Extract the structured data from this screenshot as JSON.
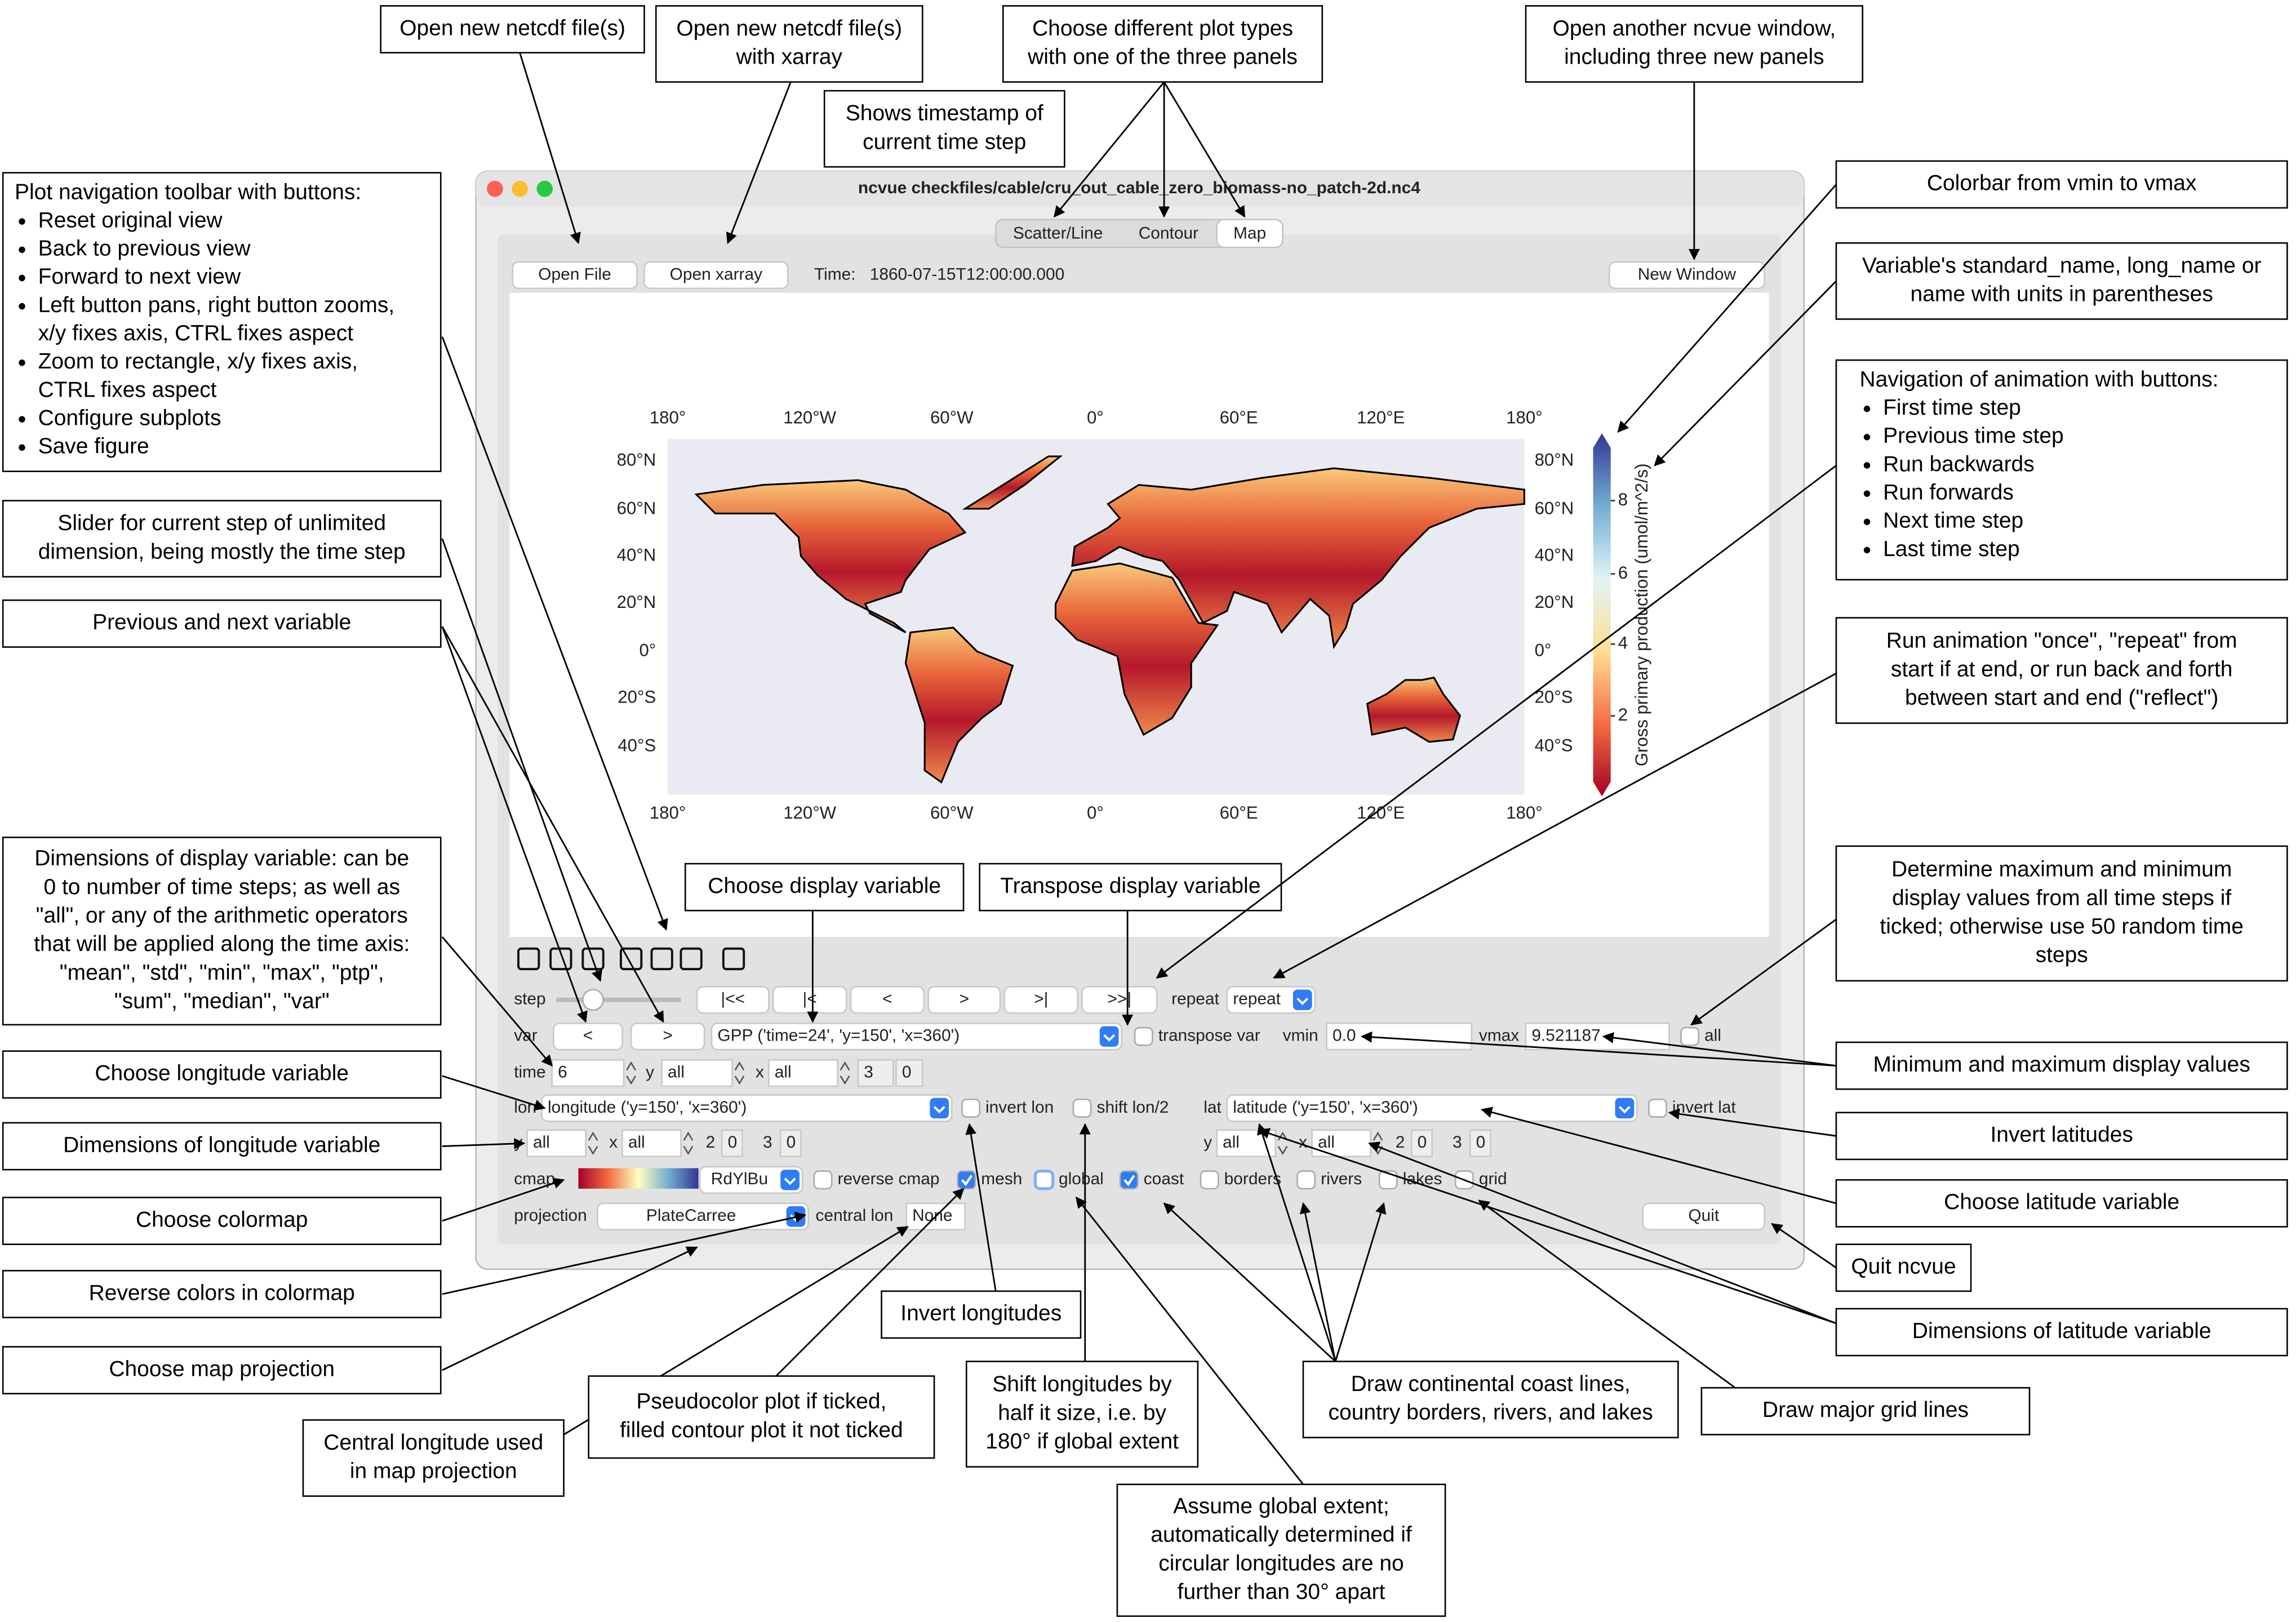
{
  "window": {
    "title": "ncvue checkfiles/cable/cru_out_cable_zero_biomass-no_patch-2d.nc4"
  },
  "tabs": [
    "Scatter/Line",
    "Contour",
    "Map"
  ],
  "top_bar": {
    "open_file": "Open File",
    "open_xarray": "Open xarray",
    "time_label": "Time:",
    "time_value": "1860-07-15T12:00:00.000",
    "new_window": "New Window"
  },
  "map": {
    "lon_labels": [
      "180°",
      "120°W",
      "60°W",
      "0°",
      "60°E",
      "120°E",
      "180°"
    ],
    "lat_labels": [
      "80°N",
      "60°N",
      "40°N",
      "20°N",
      "0°",
      "20°S",
      "40°S"
    ],
    "colorbar_ticks": [
      "2",
      "4",
      "6",
      "8"
    ],
    "colorbar_label": "Gross primary production (umol/m^2/s)"
  },
  "controls": {
    "step": {
      "label": "step",
      "buttons": [
        "|<<",
        "|<",
        "<",
        ">",
        ">|",
        ">>|"
      ],
      "repeat_label": "repeat",
      "repeat_value": "repeat"
    },
    "var": {
      "label": "var",
      "prev": "<",
      "next": ">",
      "value": "GPP ('time=24', 'y=150', 'x=360')",
      "transpose": "transpose var",
      "vmin_label": "vmin",
      "vmin": "0.0",
      "vmax_label": "vmax",
      "vmax": "9.521187",
      "all": "all"
    },
    "time": {
      "label": "time",
      "value": "6",
      "y_label": "y",
      "y_value": "all",
      "x_label": "x",
      "x_value": "all",
      "d3": "3",
      "d4": "0"
    },
    "lon": {
      "label": "lon",
      "value": "longitude ('y=150', 'x=360')",
      "invert": "invert lon",
      "shift": "shift lon/2"
    },
    "lat": {
      "label": "lat",
      "value": "latitude ('y=150', 'x=360')",
      "invert": "invert lat"
    },
    "lon_dims": {
      "y_label": "y",
      "y_value": "all",
      "x_label": "x",
      "x_value": "all",
      "d3": "2",
      "d4": "0",
      "d5": "3",
      "d6": "0"
    },
    "lat_dims": {
      "y_label": "y",
      "y_value": "all",
      "x_label": "x",
      "x_value": "all",
      "d3": "2",
      "d4": "0",
      "d5": "3",
      "d6": "0"
    },
    "cmap": {
      "label": "cmap",
      "value": "RdYlBu",
      "reverse": "reverse cmap",
      "mesh": "mesh",
      "global": "global",
      "coast": "coast",
      "borders": "borders",
      "rivers": "rivers",
      "lakes": "lakes",
      "grid": "grid"
    },
    "projection": {
      "label": "projection",
      "value": "PlateCarree",
      "central_lon_label": "central lon",
      "central_lon": "None",
      "quit": "Quit"
    }
  },
  "annotations": [
    {
      "lines": [
        "Open new netcdf file(s)"
      ]
    },
    {
      "lines": [
        "Open new netcdf file(s)",
        "with xarray"
      ]
    },
    {
      "lines": [
        "Choose different plot types",
        "with one of the three panels"
      ]
    },
    {
      "lines": [
        "Shows timestamp of",
        "current time step"
      ]
    },
    {
      "lines": [
        "Open another ncvue window,",
        "including three new panels"
      ]
    },
    {
      "title": "Plot navigation toolbar with buttons:",
      "items": [
        "Reset original view",
        "Back to previous view",
        "Forward to next view",
        "Left button pans, right button zooms,",
        "x/y fixes axis, CTRL fixes aspect",
        "Zoom to rectangle, x/y fixes axis,",
        "CTRL fixes aspect",
        "Configure subplots",
        "Save figure"
      ]
    },
    {
      "lines": [
        "Slider for current step of unlimited",
        "dimension, being mostly the time step"
      ]
    },
    {
      "lines": [
        "Previous and next variable"
      ]
    },
    {
      "lines": [
        "Dimensions of display variable: can be",
        "0 to number of time steps; as well as",
        "\"all\", or any of the arithmetic operators",
        "that will be applied along the time axis:",
        "\"mean\", \"std\", \"min\", \"max\", \"ptp\",",
        "\"sum\", \"median\", \"var\""
      ]
    },
    {
      "lines": [
        "Choose longitude variable"
      ]
    },
    {
      "lines": [
        "Dimensions of longitude variable"
      ]
    },
    {
      "lines": [
        "Choose colormap"
      ]
    },
    {
      "lines": [
        "Reverse colors in colormap"
      ]
    },
    {
      "lines": [
        "Choose map projection"
      ]
    },
    {
      "lines": [
        "Central longitude used",
        "in map projection"
      ]
    },
    {
      "lines": [
        "Pseudocolor plot if ticked,",
        "filled contour plot it not ticked"
      ]
    },
    {
      "lines": [
        "Invert longitudes"
      ]
    },
    {
      "lines": [
        "Shift longitudes by",
        "half it size, i.e. by",
        "180° if global extent"
      ]
    },
    {
      "lines": [
        "Assume global extent;",
        "automatically determined if",
        "circular longitudes are no",
        "further than 30° apart"
      ]
    },
    {
      "lines": [
        "Draw continental coast lines,",
        "country borders, rivers, and lakes"
      ]
    },
    {
      "lines": [
        "Draw major grid lines"
      ]
    },
    {
      "lines": [
        "Choose display variable"
      ]
    },
    {
      "lines": [
        "Transpose display variable"
      ]
    },
    {
      "lines": [
        "Colorbar from vmin to vmax"
      ]
    },
    {
      "lines": [
        "Variable's standard_name, long_name or",
        "name with units in parentheses"
      ]
    },
    {
      "title": "Navigation of animation with buttons:",
      "items": [
        "First time step",
        "Previous time step",
        "Run backwards",
        "Run forwards",
        "Next time step",
        "Last time step"
      ]
    },
    {
      "lines": [
        "Run animation \"once\", \"repeat\" from",
        "start if at end, or run back and forth",
        "between start and end (\"reflect\")"
      ]
    },
    {
      "lines": [
        "Determine maximum and minimum",
        "display values from all time steps if",
        "ticked; otherwise use 50 random time",
        "steps"
      ]
    },
    {
      "lines": [
        "Minimum and maximum display values"
      ]
    },
    {
      "lines": [
        "Invert latitudes"
      ]
    },
    {
      "lines": [
        "Choose latitude variable"
      ]
    },
    {
      "lines": [
        "Quit ncvue"
      ]
    },
    {
      "lines": [
        "Dimensions of latitude variable"
      ]
    }
  ]
}
